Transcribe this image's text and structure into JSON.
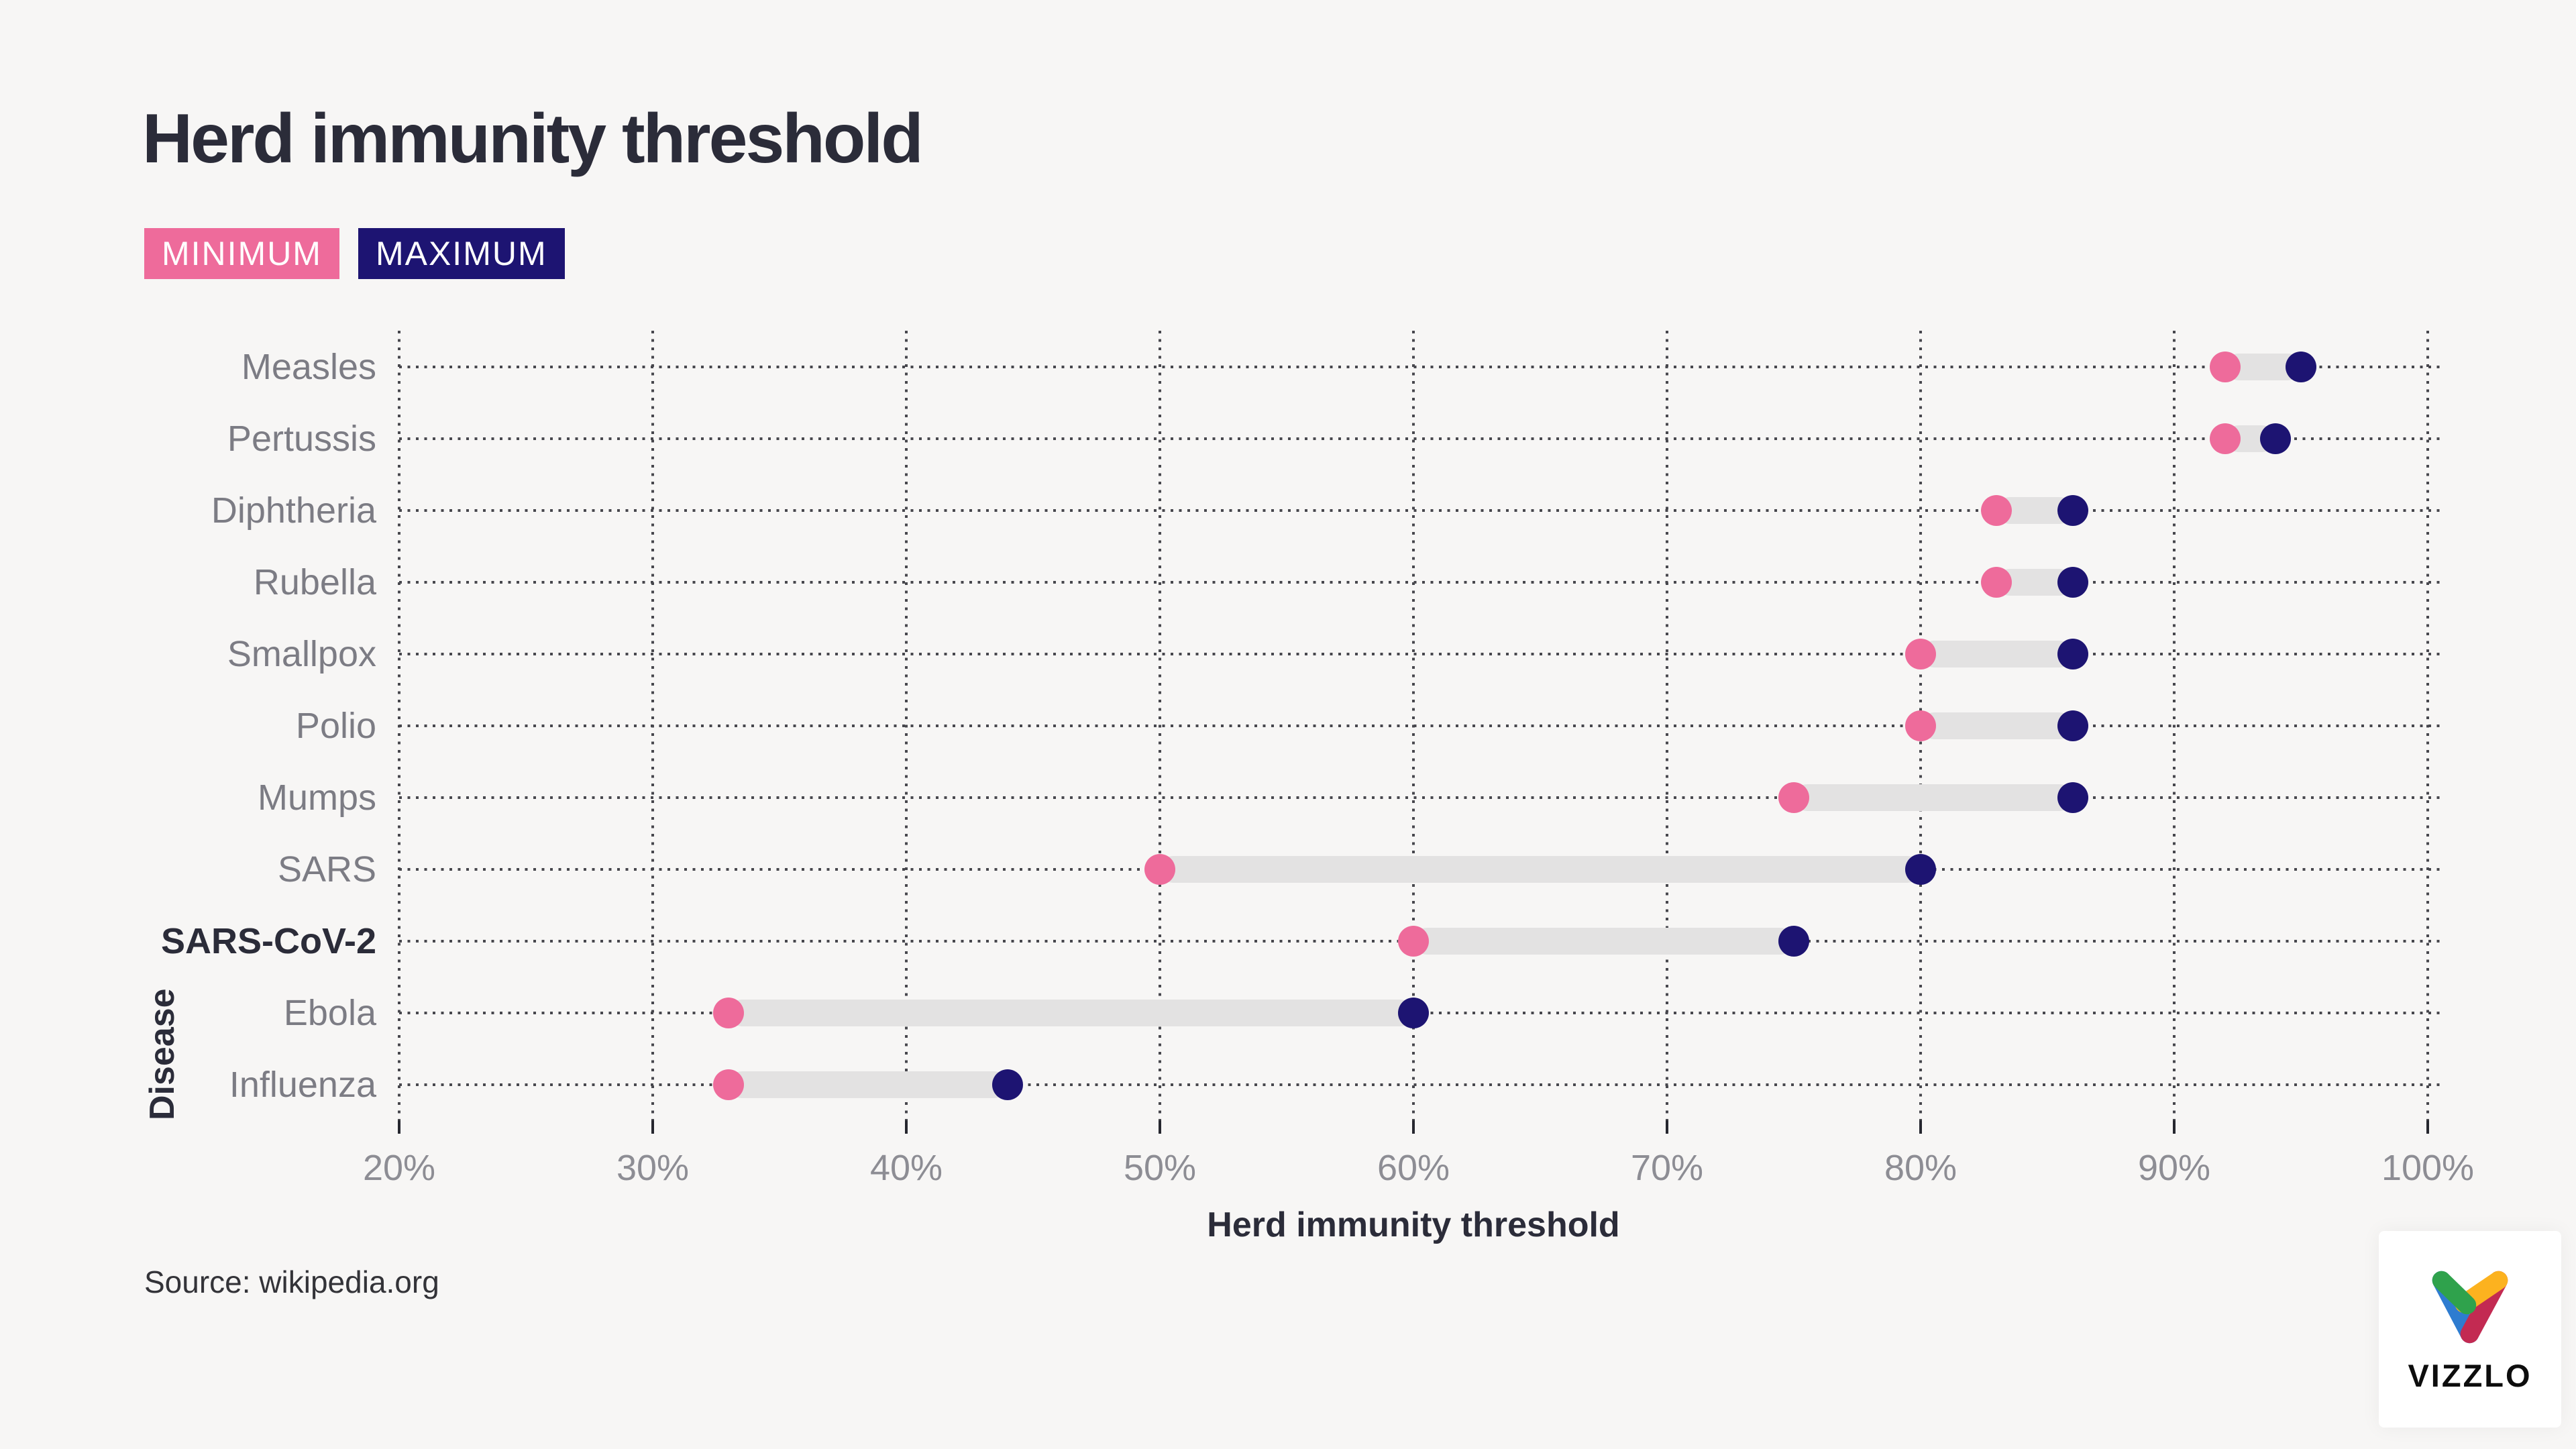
{
  "header": {
    "title": "Herd immunity threshold"
  },
  "legend": {
    "min_label": "MINIMUM",
    "max_label": "MAXIMUM"
  },
  "chart_data": {
    "type": "dumbbell",
    "orientation": "horizontal",
    "title": "Herd immunity threshold",
    "categories": [
      "Measles",
      "Pertussis",
      "Diphtheria",
      "Rubella",
      "Smallpox",
      "Polio",
      "Mumps",
      "SARS",
      "SARS-CoV-2",
      "Ebola",
      "Influenza"
    ],
    "series": [
      {
        "name": "MINIMUM",
        "values": [
          92,
          92,
          83,
          83,
          80,
          80,
          75,
          50,
          60,
          33,
          33
        ]
      },
      {
        "name": "MAXIMUM",
        "values": [
          95,
          94,
          86,
          86,
          86,
          86,
          86,
          80,
          75,
          60,
          44
        ]
      }
    ],
    "highlight_category": "SARS-CoV-2",
    "xlabel": "Herd immunity threshold",
    "ylabel": "Disease",
    "xlim": [
      20,
      100
    ],
    "xticks": [
      {
        "value": 20,
        "label": "20%"
      },
      {
        "value": 30,
        "label": "30%"
      },
      {
        "value": 40,
        "label": "40%"
      },
      {
        "value": 50,
        "label": "50%"
      },
      {
        "value": 60,
        "label": "60%"
      },
      {
        "value": 70,
        "label": "70%"
      },
      {
        "value": 80,
        "label": "80%"
      },
      {
        "value": 90,
        "label": "90%"
      },
      {
        "value": 100,
        "label": "100%"
      }
    ],
    "grid": "dotted",
    "legend_position": "top-left",
    "colors": {
      "min": "#ee6b9b",
      "max": "#1d1472",
      "bar": "#e3e2e2",
      "grid_dot": "#47474d",
      "background": "#f7f6f5"
    }
  },
  "footer": {
    "source": "Source: wikipedia.org",
    "logo_text": "VIZZLO",
    "logo_colors": {
      "green": "#2fa24c",
      "blue": "#2e7cd0",
      "yellow": "#fcb21f",
      "red": "#c32a52"
    }
  }
}
